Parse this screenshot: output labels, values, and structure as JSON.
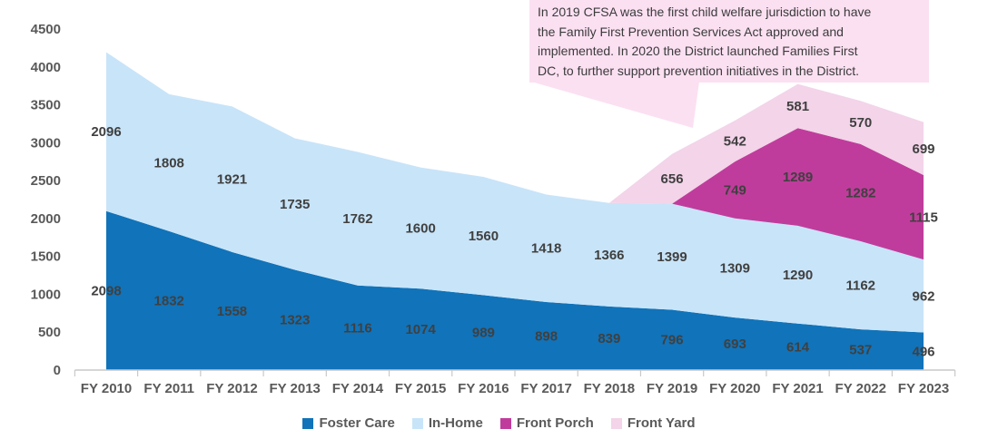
{
  "annotation": {
    "lines": [
      "In 2019 CFSA was the first child welfare jurisdiction to have",
      "the Family First Prevention Services Act approved and",
      "implemented. In 2020 the District launched Families First",
      "DC, to further support prevention initiatives in the District."
    ],
    "bg_color": "#FBE0F2",
    "text_color": "#3B3B3B"
  },
  "chart_data": {
    "type": "area",
    "stacked": true,
    "title": "",
    "xlabel": "",
    "ylabel": "",
    "categories": [
      "FY 2010",
      "FY 2011",
      "FY 2012",
      "FY 2013",
      "FY 2014",
      "FY 2015",
      "FY 2016",
      "FY 2017",
      "FY 2018",
      "FY 2019",
      "FY 2020",
      "FY 2021",
      "FY 2022",
      "FY 2023"
    ],
    "series": [
      {
        "name": "Foster Care",
        "color": "#1173B9",
        "values": [
          2098,
          1832,
          1558,
          1323,
          1116,
          1074,
          989,
          898,
          839,
          796,
          693,
          614,
          537,
          496
        ]
      },
      {
        "name": "In-Home",
        "color": "#C8E4F9",
        "values": [
          2096,
          1808,
          1921,
          1735,
          1762,
          1600,
          1560,
          1418,
          1366,
          1399,
          1309,
          1290,
          1162,
          962
        ]
      },
      {
        "name": "Front Porch",
        "color": "#C03C9C",
        "values": [
          0,
          0,
          0,
          0,
          0,
          0,
          0,
          0,
          0,
          0,
          749,
          1289,
          1282,
          1115
        ]
      },
      {
        "name": "Front Yard",
        "color": "#F3D4E9",
        "values": [
          0,
          0,
          0,
          0,
          0,
          0,
          0,
          0,
          0,
          656,
          542,
          581,
          570,
          699
        ]
      }
    ],
    "ylim": [
      0,
      4500
    ],
    "ytick_step": 500,
    "yticks": [
      0,
      500,
      1000,
      1500,
      2000,
      2500,
      3000,
      3500,
      4000,
      4500
    ],
    "grid": false,
    "data_labels": true,
    "legend_position": "bottom",
    "label_color": "#404040",
    "axis_text_color": "#595959",
    "axis_line_color": "#C9C9C9"
  }
}
